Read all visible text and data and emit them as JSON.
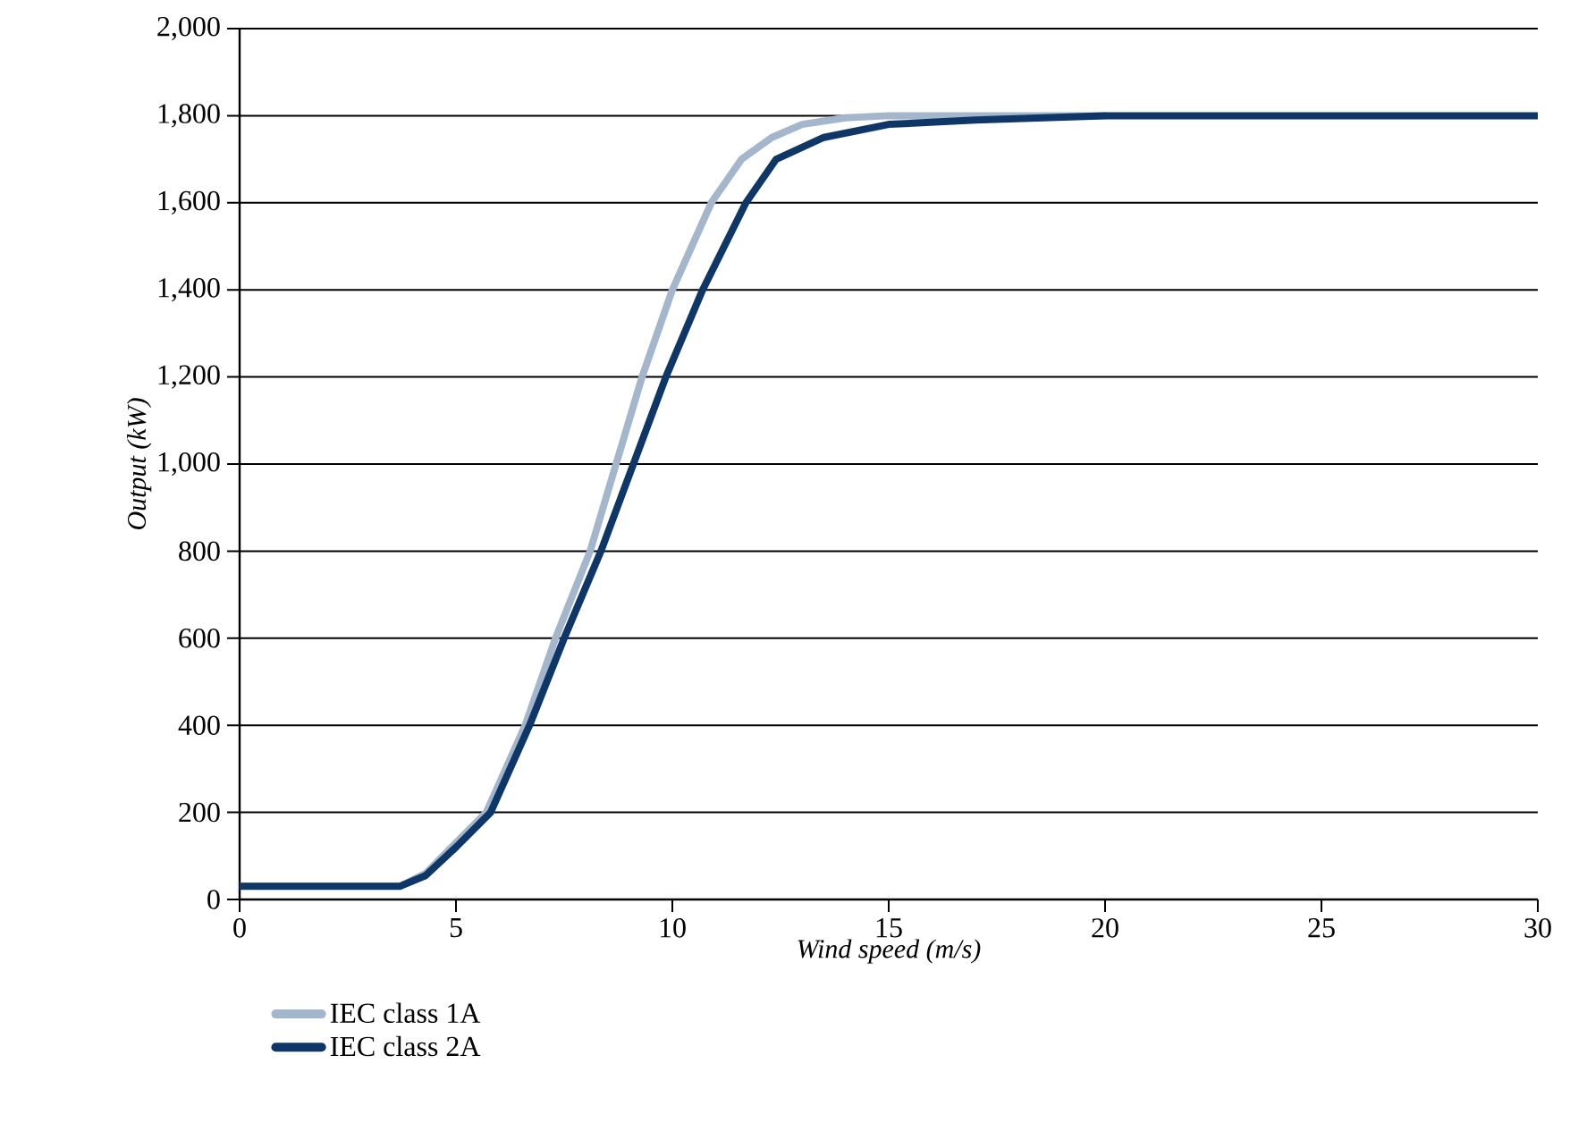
{
  "chart_data": {
    "type": "line",
    "xlabel": "Wind speed (m/s)",
    "ylabel": "Output (kW)",
    "xlim": [
      0,
      30
    ],
    "xticks": [
      0,
      5,
      10,
      15,
      20,
      25,
      30
    ],
    "ylim": [
      0,
      2000
    ],
    "yticks": [
      {
        "value": 0,
        "label": "0"
      },
      {
        "value": 200,
        "label": "200"
      },
      {
        "value": 400,
        "label": "400"
      },
      {
        "value": 600,
        "label": "600"
      },
      {
        "value": 800,
        "label": "800"
      },
      {
        "value": 1000,
        "label": "1,000"
      },
      {
        "value": 1200,
        "label": "1,200"
      },
      {
        "value": 1400,
        "label": "1,400"
      },
      {
        "value": 1600,
        "label": "1,600"
      },
      {
        "value": 1800,
        "label": "1,800"
      },
      {
        "value": 2000,
        "label": "2,000"
      }
    ],
    "grid": "y",
    "legend": "bottom",
    "marker": "none",
    "line_style": "solid",
    "series": [
      {
        "name": "IEC class 1A",
        "color": "#a3b6cc",
        "x": [
          0,
          3.7,
          4.3,
          5,
          5.7,
          6.6,
          7.3,
          8.1,
          8.7,
          9.3,
          10.0,
          10.9,
          11.6,
          12.3,
          13,
          14,
          15,
          20
        ],
        "values": [
          30,
          30,
          60,
          130,
          200,
          400,
          600,
          800,
          1000,
          1200,
          1400,
          1600,
          1700,
          1750,
          1780,
          1795,
          1800,
          1800
        ]
      },
      {
        "name": "IEC class 2A",
        "color": "#0e3767",
        "x": [
          0,
          3.7,
          4.3,
          5,
          5.8,
          6.7,
          7.5,
          8.35,
          9.1,
          9.85,
          10.7,
          11.7,
          12.4,
          13.5,
          15,
          17,
          20,
          30
        ],
        "values": [
          30,
          30,
          55,
          120,
          200,
          400,
          600,
          800,
          1000,
          1200,
          1400,
          1600,
          1700,
          1750,
          1780,
          1790,
          1800,
          1800
        ]
      }
    ]
  }
}
